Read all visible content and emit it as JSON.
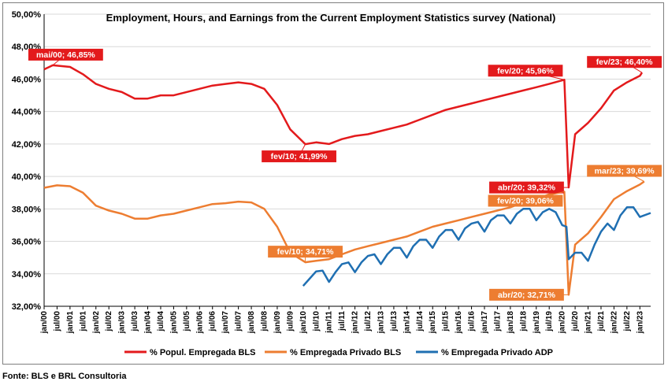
{
  "chart_data": {
    "type": "line",
    "title": "Employment, Hours, and Earnings from the Current Employment Statistics survey (National)",
    "xlabel": "",
    "ylabel": "",
    "ylim": [
      32,
      50
    ],
    "y_ticks": [
      "32,00%",
      "34,00%",
      "36,00%",
      "38,00%",
      "40,00%",
      "42,00%",
      "44,00%",
      "46,00%",
      "48,00%",
      "50,00%"
    ],
    "x_ticks": [
      "jan/00",
      "jul/00",
      "jan/01",
      "jul/01",
      "jan/02",
      "jul/02",
      "jan/03",
      "jul/03",
      "jan/04",
      "jul/04",
      "jan/05",
      "jul/05",
      "jan/06",
      "jul/06",
      "jan/07",
      "jul/07",
      "jan/08",
      "jul/08",
      "jan/09",
      "jul/09",
      "jan/10",
      "jul/10",
      "jan/11",
      "jul/11",
      "jan/12",
      "jul/12",
      "jan/13",
      "jul/13",
      "jan/14",
      "jul/14",
      "jan/15",
      "jul/15",
      "jan/16",
      "jul/16",
      "jan/17",
      "jul/17",
      "jan/18",
      "jul/18",
      "jan/19",
      "jul/19",
      "jan/20",
      "jul/20",
      "jan/21",
      "jul/21",
      "jan/22",
      "jul/22",
      "jan/23"
    ],
    "x_range": [
      "jan/00",
      "jun/23"
    ],
    "grid": true,
    "legend_position": "bottom",
    "series": [
      {
        "name": "% Popul. Empregada BLS",
        "color": "#e31a1c",
        "points": [
          [
            "jan/00",
            46.6
          ],
          [
            "mai/00",
            46.85
          ],
          [
            "jan/01",
            46.75
          ],
          [
            "jul/01",
            46.3
          ],
          [
            "jan/02",
            45.7
          ],
          [
            "jul/02",
            45.4
          ],
          [
            "jan/03",
            45.2
          ],
          [
            "jul/03",
            44.8
          ],
          [
            "jan/04",
            44.8
          ],
          [
            "jul/04",
            45.0
          ],
          [
            "jan/05",
            45.0
          ],
          [
            "jul/05",
            45.2
          ],
          [
            "jan/06",
            45.4
          ],
          [
            "jul/06",
            45.6
          ],
          [
            "jan/07",
            45.7
          ],
          [
            "jul/07",
            45.8
          ],
          [
            "jan/08",
            45.7
          ],
          [
            "jul/08",
            45.4
          ],
          [
            "jan/09",
            44.4
          ],
          [
            "jul/09",
            42.9
          ],
          [
            "fev/10",
            41.99
          ],
          [
            "jul/10",
            42.1
          ],
          [
            "jan/11",
            42.0
          ],
          [
            "jul/11",
            42.3
          ],
          [
            "jan/12",
            42.5
          ],
          [
            "jul/12",
            42.6
          ],
          [
            "jan/13",
            42.8
          ],
          [
            "jul/13",
            43.0
          ],
          [
            "jan/14",
            43.2
          ],
          [
            "jul/14",
            43.5
          ],
          [
            "jan/15",
            43.8
          ],
          [
            "jul/15",
            44.1
          ],
          [
            "jan/16",
            44.3
          ],
          [
            "jul/16",
            44.5
          ],
          [
            "jan/17",
            44.7
          ],
          [
            "jul/17",
            44.9
          ],
          [
            "jan/18",
            45.1
          ],
          [
            "jul/18",
            45.3
          ],
          [
            "jan/19",
            45.5
          ],
          [
            "jul/19",
            45.7
          ],
          [
            "fev/20",
            45.96
          ],
          [
            "abr/20",
            39.32
          ],
          [
            "jul/20",
            42.6
          ],
          [
            "jan/21",
            43.3
          ],
          [
            "jul/21",
            44.2
          ],
          [
            "jan/22",
            45.3
          ],
          [
            "jul/22",
            45.8
          ],
          [
            "jan/23",
            46.2
          ],
          [
            "fev/23",
            46.4
          ]
        ]
      },
      {
        "name": "% Empregada Privado BLS",
        "color": "#ed7d31",
        "points": [
          [
            "jan/00",
            39.3
          ],
          [
            "jul/00",
            39.45
          ],
          [
            "jan/01",
            39.4
          ],
          [
            "jul/01",
            39.0
          ],
          [
            "jan/02",
            38.2
          ],
          [
            "jul/02",
            37.9
          ],
          [
            "jan/03",
            37.7
          ],
          [
            "jul/03",
            37.4
          ],
          [
            "jan/04",
            37.4
          ],
          [
            "jul/04",
            37.6
          ],
          [
            "jan/05",
            37.7
          ],
          [
            "jul/05",
            37.9
          ],
          [
            "jan/06",
            38.1
          ],
          [
            "jul/06",
            38.3
          ],
          [
            "jan/07",
            38.35
          ],
          [
            "jul/07",
            38.45
          ],
          [
            "jan/08",
            38.4
          ],
          [
            "jul/08",
            38.0
          ],
          [
            "jan/09",
            36.9
          ],
          [
            "jul/09",
            35.3
          ],
          [
            "fev/10",
            34.71
          ],
          [
            "jul/10",
            34.8
          ],
          [
            "jan/11",
            34.9
          ],
          [
            "jul/11",
            35.2
          ],
          [
            "jan/12",
            35.5
          ],
          [
            "jul/12",
            35.7
          ],
          [
            "jan/13",
            35.9
          ],
          [
            "jul/13",
            36.1
          ],
          [
            "jan/14",
            36.3
          ],
          [
            "jul/14",
            36.6
          ],
          [
            "jan/15",
            36.9
          ],
          [
            "jul/15",
            37.1
          ],
          [
            "jan/16",
            37.3
          ],
          [
            "jul/16",
            37.5
          ],
          [
            "jan/17",
            37.7
          ],
          [
            "jul/17",
            37.9
          ],
          [
            "jan/18",
            38.1
          ],
          [
            "jul/18",
            38.4
          ],
          [
            "jan/19",
            38.6
          ],
          [
            "jul/19",
            38.9
          ],
          [
            "fev/20",
            39.06
          ],
          [
            "abr/20",
            32.71
          ],
          [
            "jul/20",
            35.8
          ],
          [
            "jan/21",
            36.5
          ],
          [
            "jul/21",
            37.5
          ],
          [
            "jan/22",
            38.6
          ],
          [
            "jul/22",
            39.1
          ],
          [
            "jan/23",
            39.5
          ],
          [
            "mar/23",
            39.69
          ]
        ]
      },
      {
        "name": "% Empregada Privado ADP",
        "color": "#1f6fb2",
        "points": [
          [
            "jan/10",
            33.25
          ],
          [
            "abr/10",
            33.7
          ],
          [
            "jul/10",
            34.15
          ],
          [
            "out/10",
            34.2
          ],
          [
            "jan/11",
            33.5
          ],
          [
            "abr/11",
            34.1
          ],
          [
            "jul/11",
            34.6
          ],
          [
            "out/11",
            34.7
          ],
          [
            "jan/12",
            34.1
          ],
          [
            "abr/12",
            34.7
          ],
          [
            "jul/12",
            35.1
          ],
          [
            "out/12",
            35.2
          ],
          [
            "jan/13",
            34.6
          ],
          [
            "abr/13",
            35.2
          ],
          [
            "jul/13",
            35.6
          ],
          [
            "out/13",
            35.6
          ],
          [
            "jan/14",
            35.0
          ],
          [
            "abr/14",
            35.7
          ],
          [
            "jul/14",
            36.1
          ],
          [
            "out/14",
            36.1
          ],
          [
            "jan/15",
            35.6
          ],
          [
            "abr/15",
            36.3
          ],
          [
            "jul/15",
            36.7
          ],
          [
            "out/15",
            36.7
          ],
          [
            "jan/16",
            36.1
          ],
          [
            "abr/16",
            36.8
          ],
          [
            "jul/16",
            37.1
          ],
          [
            "out/16",
            37.2
          ],
          [
            "jan/17",
            36.6
          ],
          [
            "abr/17",
            37.3
          ],
          [
            "jul/17",
            37.6
          ],
          [
            "out/17",
            37.6
          ],
          [
            "jan/18",
            37.1
          ],
          [
            "abr/18",
            37.7
          ],
          [
            "jul/18",
            38.0
          ],
          [
            "out/18",
            38.0
          ],
          [
            "jan/19",
            37.3
          ],
          [
            "abr/19",
            37.8
          ],
          [
            "jul/19",
            38.0
          ],
          [
            "out/19",
            37.8
          ],
          [
            "jan/20",
            37.0
          ],
          [
            "mar/20",
            36.9
          ],
          [
            "abr/20",
            34.9
          ],
          [
            "jul/20",
            35.3
          ],
          [
            "out/20",
            35.3
          ],
          [
            "jan/21",
            34.8
          ],
          [
            "abr/21",
            35.8
          ],
          [
            "jul/21",
            36.6
          ],
          [
            "out/21",
            37.1
          ],
          [
            "jan/22",
            36.7
          ],
          [
            "abr/22",
            37.6
          ],
          [
            "jul/22",
            38.1
          ],
          [
            "out/22",
            38.1
          ],
          [
            "jan/23",
            37.5
          ],
          [
            "jun/23",
            37.75
          ]
        ]
      }
    ],
    "annotations": [
      {
        "text": "mai/00; 46,85%",
        "series": 0,
        "at": "mai/00",
        "value": 46.85,
        "color": "#e31a1c",
        "pos": "above"
      },
      {
        "text": "fev/10; 41,99%",
        "series": 0,
        "at": "fev/10",
        "value": 41.99,
        "color": "#e31a1c",
        "pos": "below"
      },
      {
        "text": "fev/20; 45,96%",
        "series": 0,
        "at": "fev/20",
        "value": 45.96,
        "color": "#e31a1c",
        "pos": "above-left"
      },
      {
        "text": "fev/23; 46,40%",
        "series": 0,
        "at": "fev/23",
        "value": 46.4,
        "color": "#e31a1c",
        "pos": "above"
      },
      {
        "text": "abr/20; 39,32%",
        "series": 0,
        "at": "abr/20",
        "value": 39.32,
        "color": "#e31a1c",
        "pos": "left"
      },
      {
        "text": "fev/10; 34,71%",
        "series": 1,
        "at": "fev/10",
        "value": 34.71,
        "color": "#ed7d31",
        "pos": "above"
      },
      {
        "text": "fev/20; 39,06%",
        "series": 1,
        "at": "fev/20",
        "value": 39.06,
        "color": "#ed7d31",
        "pos": "below-left"
      },
      {
        "text": "abr/20; 32,71%",
        "series": 1,
        "at": "abr/20",
        "value": 32.71,
        "color": "#ed7d31",
        "pos": "left"
      },
      {
        "text": "mar/23; 39,69%",
        "series": 1,
        "at": "mar/23",
        "value": 39.69,
        "color": "#ed7d31",
        "pos": "above"
      }
    ]
  },
  "source_note": "Fonte: BLS e BRL Consultoria"
}
